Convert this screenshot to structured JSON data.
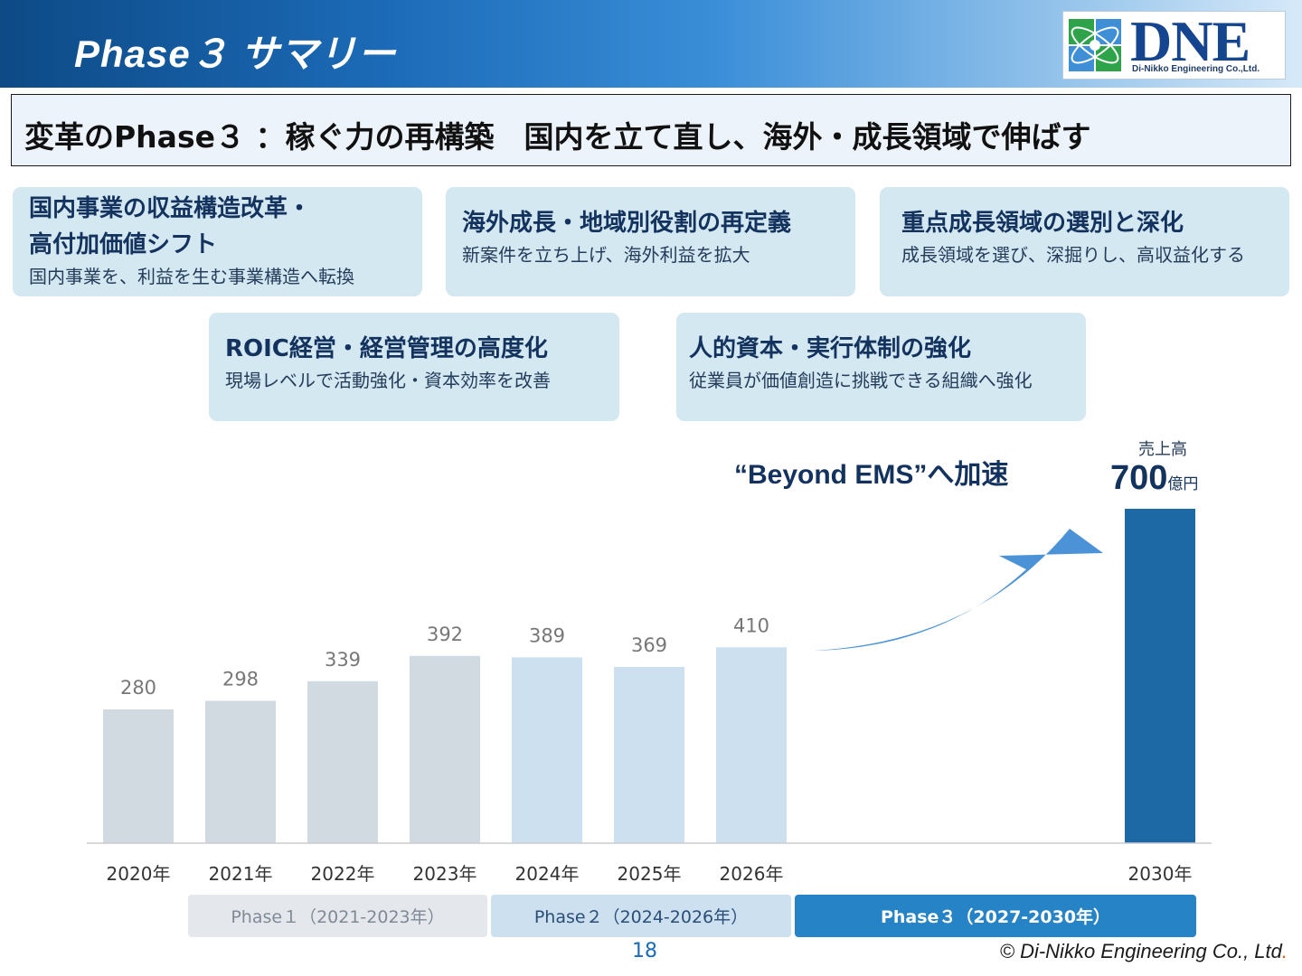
{
  "header": {
    "title": "Phase３ サマリー",
    "logo_text": "DNE",
    "logo_sub": "Di-Nikko Engineering Co.,Ltd."
  },
  "banner": {
    "text": "変革のPhase３ ：稼ぐ力の再構築　国内を立て直し、海外・成長領域で伸ばす"
  },
  "cards": [
    {
      "title": "国内事業の収益構造改革・\n高付加価値シフト",
      "sub": "国内事業を、利益を生む事業構造へ転換"
    },
    {
      "title": "海外成長・地域別役割の再定義",
      "sub": "新案件を立ち上げ、海外利益を拡大"
    },
    {
      "title": "重点成長領域の選別と深化",
      "sub": "成長領域を選び、深掘りし、高収益化する"
    },
    {
      "title": "ROIC経営・経営管理の高度化",
      "sub": "現場レベルで活動強化・資本効率を改善"
    },
    {
      "title": "人的資本・実行体制の強化",
      "sub": "従業員が価値創造に挑戦できる組織へ強化"
    }
  ],
  "chart_data": {
    "type": "bar",
    "categories": [
      "2020年",
      "2021年",
      "2022年",
      "2023年",
      "2024年",
      "2025年",
      "2026年",
      "2030年"
    ],
    "values": [
      280,
      298,
      339,
      392,
      389,
      369,
      410,
      700
    ],
    "labels": [
      "280",
      "298",
      "339",
      "392",
      "389",
      "369",
      "410",
      ""
    ],
    "bar_colors": [
      "#d1d9e1",
      "#d1d9e1",
      "#d1d9e1",
      "#d1d9e1",
      "#cde0ef",
      "#cde0ef",
      "#cde0ef",
      "#1c69a5"
    ],
    "ylim": [
      0,
      700
    ],
    "title": "",
    "xlabel": "",
    "ylabel": "",
    "grid": false,
    "annotation": "“Beyond EMS”へ加速",
    "target": {
      "label": "売上高",
      "value": "700",
      "unit": "億円"
    }
  },
  "phases": [
    {
      "label": "Phase１（2021-2023年）",
      "bg": "#e4e8ec",
      "color": "#7f8a96"
    },
    {
      "label": "Phase２（2024-2026年）",
      "bg": "#cde0ef",
      "color": "#2a4e78"
    },
    {
      "label": "Phase３（2027-2030年）",
      "bg": "#2683c6",
      "color": "#ffffff"
    }
  ],
  "footer": {
    "page": "18",
    "copyright": "© Di-Nikko Engineering Co., Ltd",
    "copyright_dot": "."
  },
  "colors": {
    "accent": "#1c6bb8",
    "navy": "#13325e",
    "card_bg": "#d4e8f2",
    "arrow": "#4b93d6"
  }
}
